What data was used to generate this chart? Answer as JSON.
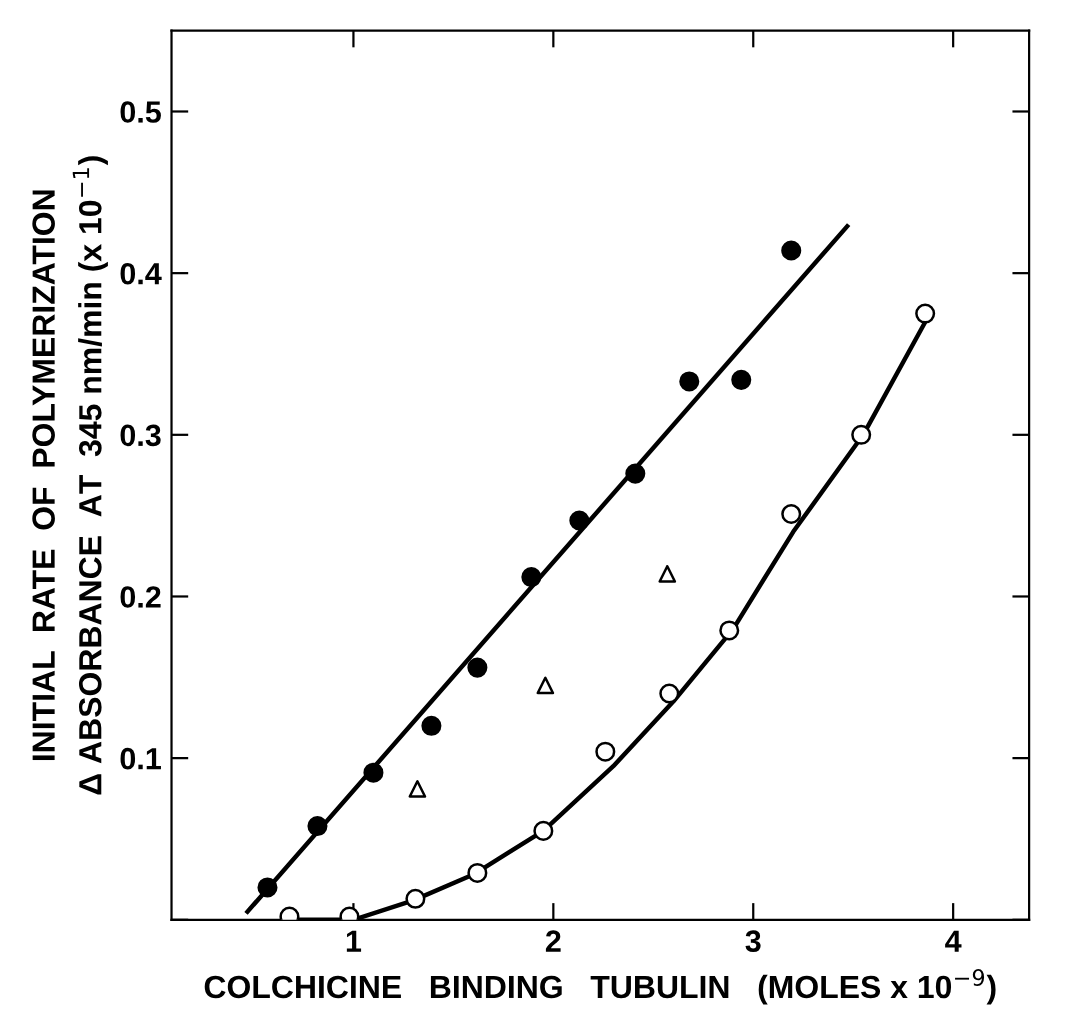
{
  "chart_data": {
    "type": "scatter",
    "xlabel": "COLCHICINE   BINDING   TUBULIN   (MOLES x 10$^{−9}$)",
    "ylabel": "INITIAL  RATE  OF  POLYMERIZATION\nΔ ABSORBANCE  AT  345 nm/min (x 10$^{−1}$)",
    "xlim": [
      0.09,
      4.38
    ],
    "ylim": [
      0,
      0.55
    ],
    "xticks": [
      1,
      2,
      3,
      4
    ],
    "yticks": [
      {
        "value": 0,
        "label": null
      },
      0.1,
      0.2,
      0.3,
      0.4,
      0.5
    ],
    "grid": false,
    "legend": false,
    "series": [
      {
        "type": "line",
        "color": "#000000",
        "marker": "none",
        "line_style": "solid",
        "x": [
          0.47,
          3.47
        ],
        "values": [
          0.005,
          0.429
        ]
      },
      {
        "type": "line",
        "color": "#000000",
        "marker": "none",
        "line_style": "solid",
        "x": [
          0.7,
          1.0,
          1.3,
          1.6,
          1.95,
          2.3,
          2.6,
          2.9,
          3.2,
          3.55,
          3.87
        ],
        "values": [
          0.0,
          0.0,
          0.012,
          0.028,
          0.055,
          0.095,
          0.135,
          0.18,
          0.24,
          0.3,
          0.372
        ]
      },
      {
        "color": "#000000",
        "marker": "circle",
        "x": [
          0.57,
          0.82,
          1.1,
          1.39,
          1.62,
          1.89,
          2.13,
          2.41,
          2.68,
          2.94,
          3.19
        ],
        "values": [
          0.02,
          0.058,
          0.091,
          0.12,
          0.156,
          0.212,
          0.247,
          0.276,
          0.333,
          0.334,
          0.414
        ]
      },
      {
        "color": "#ffffff",
        "marker": "circle",
        "x": [
          0.68,
          0.98,
          1.31,
          1.62,
          1.95,
          2.26,
          2.58,
          2.88,
          3.19,
          3.54,
          3.86
        ],
        "values": [
          0.002,
          0.002,
          0.013,
          0.029,
          0.055,
          0.104,
          0.14,
          0.179,
          0.251,
          0.3,
          0.375
        ]
      },
      {
        "color": "#ffffff",
        "marker": "triangle",
        "x": [
          1.32,
          1.96,
          2.57
        ],
        "values": [
          0.081,
          0.145,
          0.214
        ]
      }
    ]
  }
}
